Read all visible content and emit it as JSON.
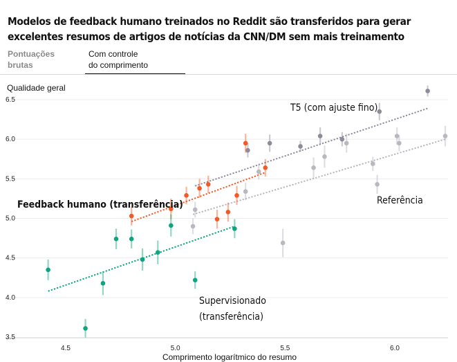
{
  "title": "Modelos de feedback humano treinados no Reddit são transferidos para gerar excelentes resumos de artigos de notícias da CNN/DM sem mais treinamento",
  "tabs": [
    {
      "label_line1": "Pontuações",
      "label_line2": "brutas",
      "selected": false
    },
    {
      "label_line1": "Com controle",
      "label_line2": "do comprimento",
      "selected": true
    }
  ],
  "chart_data": {
    "type": "scatter",
    "title": "Modelos de feedback humano treinados no Reddit são transferidos para gerar excelentes resumos de artigos de notícias da CNN/DM sem mais treinamento",
    "xlabel": "Comprimento logarítmico do resumo",
    "ylabel": "Qualidade geral",
    "xlim": [
      4.35,
      6.23
    ],
    "ylim": [
      3.5,
      6.65
    ],
    "x_ticks": [
      "4.5",
      "5.0",
      "5.5",
      "6.0"
    ],
    "y_ticks": [
      "3.5",
      "4.0",
      "4.5",
      "5.0",
      "5.5",
      "6.0",
      "6.5"
    ],
    "grid": "horizontal",
    "series": [
      {
        "name": "T5 (com ajuste fino)",
        "color": "#8e8b9a",
        "trend": {
          "x": [
            5.09,
            6.15
          ],
          "y": [
            5.41,
            6.39
          ]
        },
        "points": [
          {
            "x": 5.33,
            "y": 5.86,
            "err": 0.09
          },
          {
            "x": 5.43,
            "y": 5.95,
            "err": 0.11
          },
          {
            "x": 5.57,
            "y": 5.91,
            "err": 0.07
          },
          {
            "x": 5.66,
            "y": 6.04,
            "err": 0.11
          },
          {
            "x": 5.76,
            "y": 6.0,
            "err": 0.09
          },
          {
            "x": 5.93,
            "y": 6.35,
            "err": 0.11
          },
          {
            "x": 6.15,
            "y": 6.61,
            "err": 0.07
          }
        ]
      },
      {
        "name": "Referência",
        "color": "#b9b7bf",
        "trend": {
          "x": [
            5.08,
            6.23
          ],
          "y": [
            5.05,
            6.0
          ]
        },
        "points": [
          {
            "x": 5.08,
            "y": 4.9,
            "err": 0.1
          },
          {
            "x": 5.09,
            "y": 5.11,
            "err": 0.1
          },
          {
            "x": 5.32,
            "y": 5.34,
            "err": 0.11
          },
          {
            "x": 5.38,
            "y": 5.59,
            "err": 0.1
          },
          {
            "x": 5.49,
            "y": 4.69,
            "err": 0.18
          },
          {
            "x": 5.63,
            "y": 5.64,
            "err": 0.13
          },
          {
            "x": 5.68,
            "y": 5.78,
            "err": 0.14
          },
          {
            "x": 5.78,
            "y": 5.95,
            "err": 0.12
          },
          {
            "x": 5.9,
            "y": 5.69,
            "err": 0.09
          },
          {
            "x": 5.92,
            "y": 5.43,
            "err": 0.12
          },
          {
            "x": 6.01,
            "y": 6.04,
            "err": 0.11
          },
          {
            "x": 6.02,
            "y": 5.95,
            "err": 0.1
          },
          {
            "x": 6.23,
            "y": 6.04,
            "err": 0.13
          }
        ]
      },
      {
        "name": "Feedback humano (transferência)",
        "color": "#f05a28",
        "trend": {
          "x": [
            4.8,
            5.41
          ],
          "y": [
            4.96,
            5.58
          ]
        },
        "points": [
          {
            "x": 4.8,
            "y": 5.03,
            "err": 0.12
          },
          {
            "x": 4.98,
            "y": 5.12,
            "err": 0.13
          },
          {
            "x": 5.05,
            "y": 5.29,
            "err": 0.11
          },
          {
            "x": 5.11,
            "y": 5.38,
            "err": 0.12
          },
          {
            "x": 5.15,
            "y": 5.43,
            "err": 0.11
          },
          {
            "x": 5.19,
            "y": 4.99,
            "err": 0.12
          },
          {
            "x": 5.24,
            "y": 5.08,
            "err": 0.12
          },
          {
            "x": 5.28,
            "y": 5.29,
            "err": 0.12
          },
          {
            "x": 5.32,
            "y": 5.95,
            "err": 0.12
          },
          {
            "x": 5.41,
            "y": 5.64,
            "err": 0.11
          }
        ]
      },
      {
        "name": "Supervisionado (transferência)",
        "color": "#10a37f",
        "trend": {
          "x": [
            4.42,
            5.27
          ],
          "y": [
            4.08,
            4.9
          ]
        },
        "points": [
          {
            "x": 4.42,
            "y": 4.35,
            "err": 0.13
          },
          {
            "x": 4.59,
            "y": 3.61,
            "err": 0.12
          },
          {
            "x": 4.67,
            "y": 4.18,
            "err": 0.15
          },
          {
            "x": 4.73,
            "y": 4.74,
            "err": 0.13
          },
          {
            "x": 4.8,
            "y": 4.74,
            "err": 0.12
          },
          {
            "x": 4.85,
            "y": 4.48,
            "err": 0.14
          },
          {
            "x": 4.92,
            "y": 4.57,
            "err": 0.15
          },
          {
            "x": 4.98,
            "y": 4.91,
            "err": 0.14
          },
          {
            "x": 5.09,
            "y": 4.22,
            "err": 0.11
          },
          {
            "x": 5.27,
            "y": 4.87,
            "err": 0.12
          }
        ]
      }
    ],
    "annotations": [
      {
        "text": "T5 (com ajuste fino)",
        "series": "T5 (com ajuste fino)"
      },
      {
        "text": "Referência",
        "series": "Referência"
      },
      {
        "text": "Feedback humano (transferência)",
        "series": "Feedback humano (transferência)"
      },
      {
        "text": "Supervisionado",
        "text2": "(transferência)",
        "series": "Supervisionado (transferência)"
      }
    ]
  }
}
